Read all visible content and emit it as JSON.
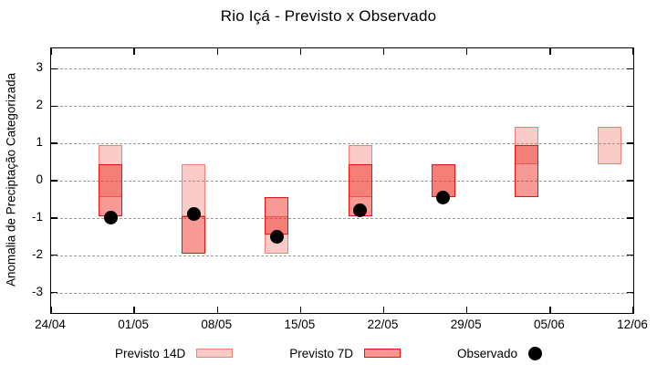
{
  "title": "Rio Içá - Previsto x Observado",
  "colors": {
    "background": "#ffffff",
    "frame": "#000000",
    "grid": "#9a9a9a",
    "forecast14_fill": "rgba(240,110,100,0.35)",
    "forecast14_border": "#f08072",
    "forecast14_legend_fill": "#f9cbc6",
    "forecast7_fill": "rgba(237,30,22,0.45)",
    "forecast7_border": "#e9150d",
    "forecast7_legend_fill": "#f79992",
    "observed": "#000000"
  },
  "chart_data": {
    "type": "bar",
    "subtype": "range-bars-with-scatter-overlay",
    "title": "Rio Içá - Previsto x Observado",
    "xlabel": "",
    "ylabel": "Anomalia de Preciptação Categorizada",
    "ylim": [
      -3.55,
      3.55
    ],
    "yticks": [
      3,
      2,
      1,
      0,
      -1,
      -2,
      -3
    ],
    "grid": "horizontal-dashed",
    "legend_position": "below-plot",
    "x_axis": {
      "start_label": "24/04",
      "end_label": "12/06",
      "tick_labels": [
        "24/04",
        "01/05",
        "08/05",
        "15/05",
        "22/05",
        "29/05",
        "05/06",
        "12/06"
      ],
      "tick_days": [
        0,
        7,
        14,
        21,
        28,
        35,
        42,
        49
      ],
      "total_days": 49
    },
    "series": [
      {
        "id": "previsto14",
        "label": "Previsto 14D",
        "type": "range",
        "points": [
          {
            "date": "29/04",
            "day": 5,
            "low": -0.45,
            "high": 0.95
          },
          {
            "date": "06/05",
            "day": 12,
            "low": -0.95,
            "high": 0.45
          },
          {
            "date": "13/05",
            "day": 19,
            "low": -1.95,
            "high": -0.95
          },
          {
            "date": "20/05",
            "day": 26,
            "low": -0.45,
            "high": 0.95
          },
          {
            "date": "27/05",
            "day": 33,
            "low": -0.45,
            "high": 0.45
          },
          {
            "date": "03/06",
            "day": 40,
            "low": 0.45,
            "high": 1.45
          },
          {
            "date": "10/06",
            "day": 47,
            "low": 0.45,
            "high": 1.45
          }
        ]
      },
      {
        "id": "previsto7",
        "label": "Previsto 7D",
        "type": "range",
        "points": [
          {
            "date": "29/04",
            "day": 5,
            "low": -0.95,
            "high": 0.45
          },
          {
            "date": "06/05",
            "day": 12,
            "low": -1.95,
            "high": -0.95
          },
          {
            "date": "13/05",
            "day": 19,
            "low": -1.45,
            "high": -0.45
          },
          {
            "date": "20/05",
            "day": 26,
            "low": -0.95,
            "high": 0.45
          },
          {
            "date": "27/05",
            "day": 33,
            "low": -0.45,
            "high": 0.45
          },
          {
            "date": "03/06",
            "day": 40,
            "low": -0.45,
            "high": 0.95
          }
        ]
      },
      {
        "id": "observado",
        "label": "Observado",
        "type": "point",
        "points": [
          {
            "date": "29/04",
            "day": 5,
            "value": -1.0
          },
          {
            "date": "06/05",
            "day": 12,
            "value": -0.9
          },
          {
            "date": "13/05",
            "day": 19,
            "value": -1.5
          },
          {
            "date": "20/05",
            "day": 26,
            "value": -0.8
          },
          {
            "date": "27/05",
            "day": 33,
            "value": -0.45
          }
        ]
      }
    ]
  }
}
